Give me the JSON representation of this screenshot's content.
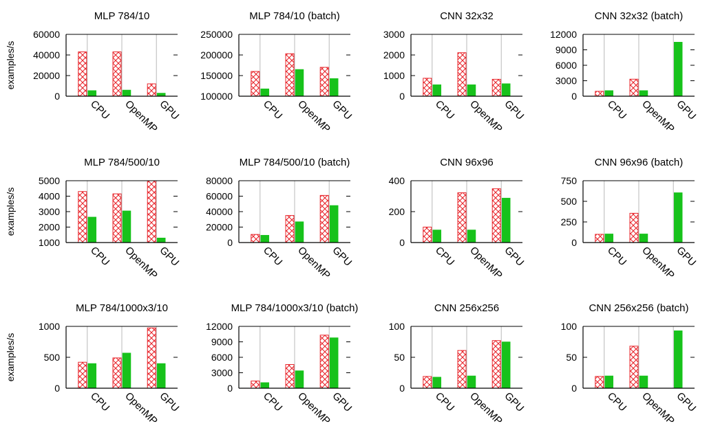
{
  "ylabel": "examples/s",
  "categories": [
    "CPU",
    "OpenMP",
    "GPU"
  ],
  "colors": {
    "pattern_series": "#e8242a",
    "solid_series": "#17c21b",
    "grid": "#b8b8b8",
    "axis": "#000000"
  },
  "chart_data": [
    {
      "type": "bar",
      "title": "MLP 784/10",
      "categories": [
        "CPU",
        "OpenMP",
        "GPU"
      ],
      "ylabel": "examples/s",
      "ylim": [
        0,
        60000
      ],
      "yticks": [
        0,
        20000,
        40000,
        60000
      ],
      "grid": true,
      "series": [
        {
          "values": [
            43000,
            43000,
            12000
          ]
        },
        {
          "values": [
            5500,
            6000,
            3000
          ]
        }
      ]
    },
    {
      "type": "bar",
      "title": "MLP 784/10 (batch)",
      "categories": [
        "CPU",
        "OpenMP",
        "GPU"
      ],
      "ylim": [
        100000,
        250000
      ],
      "yticks": [
        100000,
        150000,
        200000,
        250000
      ],
      "grid": true,
      "series": [
        {
          "values": [
            160000,
            203000,
            170000
          ]
        },
        {
          "values": [
            118000,
            165000,
            143000
          ]
        }
      ]
    },
    {
      "type": "bar",
      "title": "CNN 32x32",
      "categories": [
        "CPU",
        "OpenMP",
        "GPU"
      ],
      "ylim": [
        0,
        3000
      ],
      "yticks": [
        0,
        1000,
        2000,
        3000
      ],
      "grid": true,
      "series": [
        {
          "values": [
            870,
            2110,
            820
          ]
        },
        {
          "values": [
            560,
            560,
            610
          ]
        }
      ]
    },
    {
      "type": "bar",
      "title": "CNN 32x32 (batch)",
      "categories": [
        "CPU",
        "OpenMP",
        "GPU"
      ],
      "ylim": [
        0,
        12000
      ],
      "yticks": [
        0,
        3000,
        6000,
        9000,
        12000
      ],
      "grid": true,
      "series": [
        {
          "values": [
            950,
            3300,
            0
          ]
        },
        {
          "values": [
            1100,
            1100,
            10500
          ]
        }
      ]
    },
    {
      "type": "bar",
      "title": "MLP 784/500/10",
      "categories": [
        "CPU",
        "OpenMP",
        "GPU"
      ],
      "ylabel": "examples/s",
      "ylim": [
        1000,
        5000
      ],
      "yticks": [
        1000,
        2000,
        3000,
        4000,
        5000
      ],
      "grid": true,
      "series": [
        {
          "values": [
            4300,
            4150,
            5000
          ]
        },
        {
          "values": [
            2650,
            3050,
            1300
          ]
        }
      ]
    },
    {
      "type": "bar",
      "title": "MLP 784/500/10 (batch)",
      "categories": [
        "CPU",
        "OpenMP",
        "GPU"
      ],
      "ylim": [
        0,
        80000
      ],
      "yticks": [
        0,
        20000,
        40000,
        60000,
        80000
      ],
      "grid": true,
      "series": [
        {
          "values": [
            10500,
            35000,
            61000
          ]
        },
        {
          "values": [
            9500,
            27000,
            48000
          ]
        }
      ]
    },
    {
      "type": "bar",
      "title": "CNN 96x96",
      "categories": [
        "CPU",
        "OpenMP",
        "GPU"
      ],
      "ylim": [
        0,
        400
      ],
      "yticks": [
        0,
        200,
        400
      ],
      "grid": true,
      "series": [
        {
          "values": [
            100,
            322,
            348
          ]
        },
        {
          "values": [
            82,
            82,
            288
          ]
        }
      ]
    },
    {
      "type": "bar",
      "title": "CNN 96x96 (batch)",
      "categories": [
        "CPU",
        "OpenMP",
        "GPU"
      ],
      "ylim": [
        0,
        750
      ],
      "yticks": [
        0,
        250,
        500,
        750
      ],
      "grid": true,
      "series": [
        {
          "values": [
            100,
            355,
            0
          ]
        },
        {
          "values": [
            105,
            105,
            605
          ]
        }
      ]
    },
    {
      "type": "bar",
      "title": "MLP 784/1000x3/10",
      "categories": [
        "CPU",
        "OpenMP",
        "GPU"
      ],
      "ylabel": "examples/s",
      "ylim": [
        0,
        1000
      ],
      "yticks": [
        0,
        500,
        1000
      ],
      "grid": true,
      "series": [
        {
          "values": [
            420,
            490,
            975
          ]
        },
        {
          "values": [
            400,
            570,
            400
          ]
        }
      ]
    },
    {
      "type": "bar",
      "title": "MLP 784/1000x3/10 (batch)",
      "categories": [
        "CPU",
        "OpenMP",
        "GPU"
      ],
      "ylim": [
        0,
        12000
      ],
      "yticks": [
        0,
        3000,
        6000,
        9000,
        12000
      ],
      "grid": true,
      "series": [
        {
          "values": [
            1400,
            4600,
            10300
          ]
        },
        {
          "values": [
            1100,
            3400,
            9800
          ]
        }
      ]
    },
    {
      "type": "bar",
      "title": "CNN 256x256",
      "categories": [
        "CPU",
        "OpenMP",
        "GPU"
      ],
      "ylim": [
        0,
        100
      ],
      "yticks": [
        0,
        50,
        100
      ],
      "grid": true,
      "series": [
        {
          "values": [
            19,
            61,
            77
          ]
        },
        {
          "values": [
            18,
            20,
            75
          ]
        }
      ]
    },
    {
      "type": "bar",
      "title": "CNN 256x256 (batch)",
      "categories": [
        "CPU",
        "OpenMP",
        "GPU"
      ],
      "ylim": [
        0,
        100
      ],
      "yticks": [
        0,
        50,
        100
      ],
      "grid": true,
      "series": [
        {
          "values": [
            19,
            68,
            0
          ]
        },
        {
          "values": [
            20,
            20,
            93
          ]
        }
      ]
    }
  ]
}
